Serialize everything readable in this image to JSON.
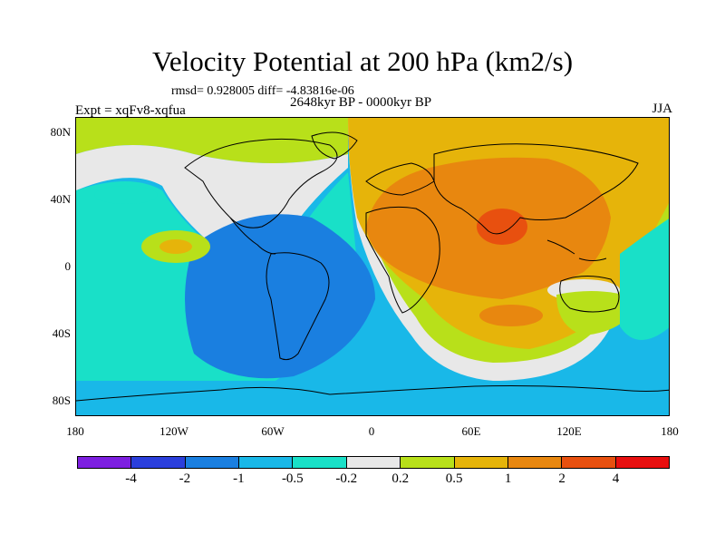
{
  "title": "Velocity Potential at 200 hPa (km2/s)",
  "stats": "rmsd= 0.928005 diff= -4.83816e-06",
  "period": "2648kyr BP - 0000kyr BP",
  "experiment": "Expt = xqFv8-xqfua",
  "season": "JJA",
  "map": {
    "lat_labels": [
      "80N",
      "40N",
      "0",
      "40S",
      "80S"
    ],
    "lon_labels": [
      "180",
      "120W",
      "60W",
      "0",
      "60E",
      "120E",
      "180"
    ]
  },
  "colorbar": {
    "colors": [
      "#7d1fe0",
      "#2b3fdc",
      "#1a7fe0",
      "#19b8e8",
      "#19e0c8",
      "#e8e8e8",
      "#b8e01a",
      "#e6b40a",
      "#e8870f",
      "#e8500f",
      "#e80f0f"
    ],
    "labels": [
      "-4",
      "-2",
      "-1",
      "-0.5",
      "-0.2",
      "0.2",
      "0.5",
      "1",
      "2",
      "4"
    ]
  },
  "field_colors": {
    "strong_negative": "#1a7fe0",
    "negative": "#19b8e8",
    "weak_negative": "#19e0c8",
    "neutral": "#e8e8e8",
    "weak_positive": "#b8e01a",
    "positive": "#e6b40a",
    "strong_positive": "#e8870f",
    "max_positive": "#e8500f"
  }
}
